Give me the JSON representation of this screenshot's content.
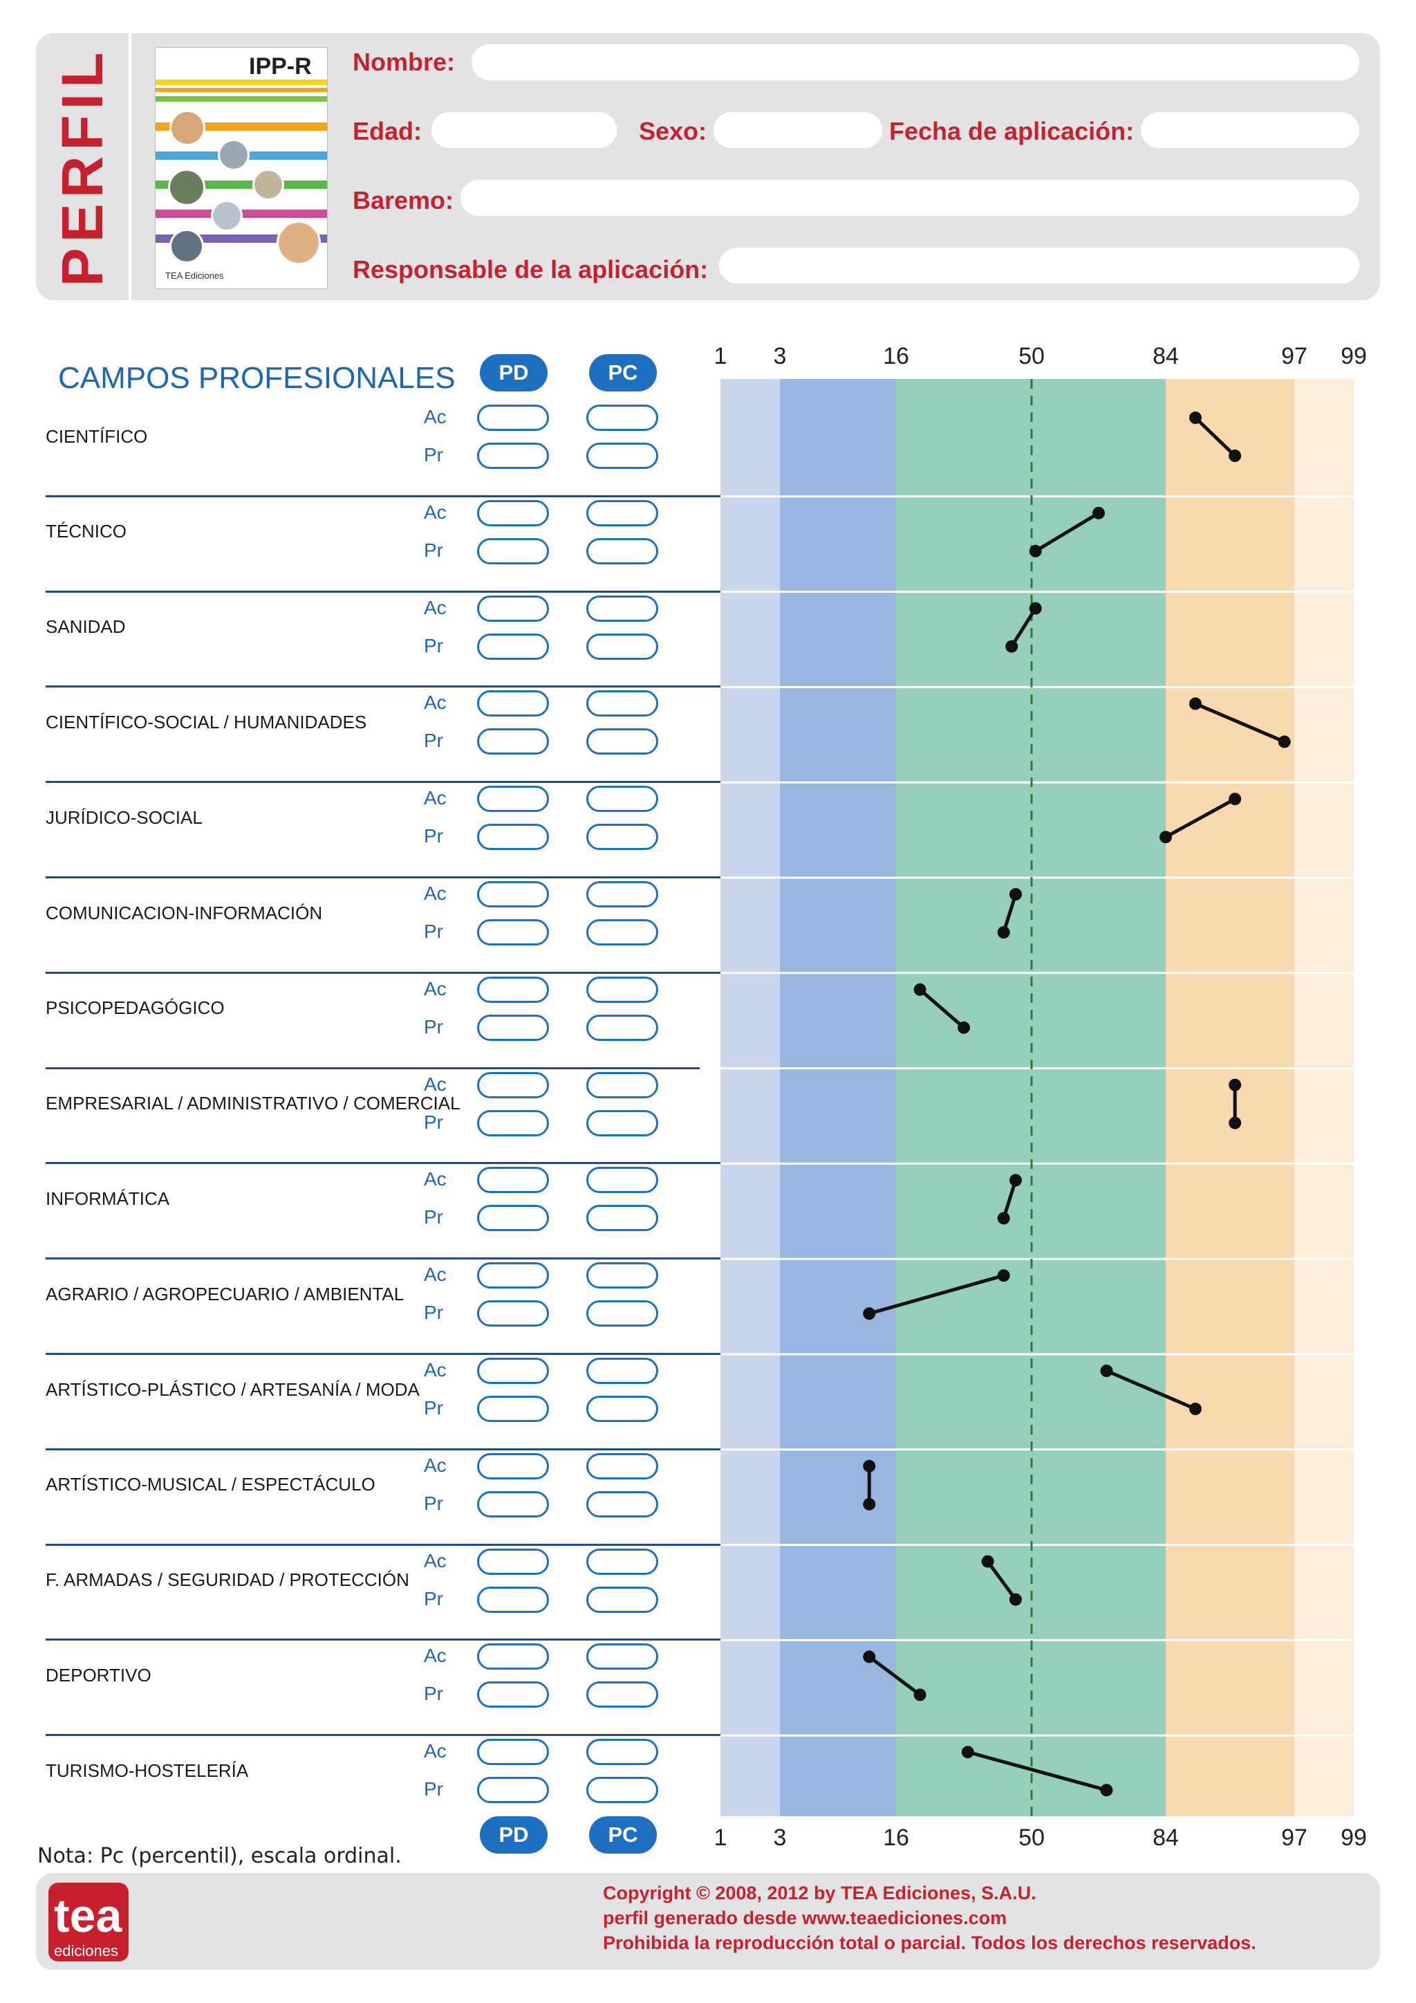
{
  "header": {
    "title": "PERFIL",
    "cover": {
      "title": "IPP-R",
      "publisher": "TEA Ediciones"
    },
    "labels": {
      "nombre": "Nombre:",
      "edad": "Edad:",
      "sexo": "Sexo:",
      "fecha": "Fecha de aplicación:",
      "baremo": "Baremo:",
      "responsable": "Responsable de la aplicación:"
    }
  },
  "section_title": "CAMPOS PROFESIONALES",
  "column_pills": {
    "pd": "PD",
    "pc": "PC"
  },
  "row_labels": {
    "ac": "Ac",
    "pr": "Pr"
  },
  "scale_ticks": [
    "1",
    "3",
    "16",
    "50",
    "84",
    "97",
    "99"
  ],
  "colors": {
    "band_1_3": "#c9d6ec",
    "band_3_16": "#9ab5df",
    "band_16_84": "#97cfbd",
    "band_84_97": "#f8d9b0",
    "band_97_99": "#fdeedc",
    "median_line": "#2f7a3a",
    "accent_red": "#c8202c",
    "accent_blue": "#1d6fc2"
  },
  "chart_data": {
    "type": "line",
    "x_axis": "percentile (ordinal scale)",
    "x_ticks": [
      1,
      3,
      16,
      50,
      84,
      97,
      99
    ],
    "categories": [
      "CIENTÍFICO",
      "TÉCNICO",
      "SANIDAD",
      "CIENTÍFICO-SOCIAL / HUMANIDADES",
      "JURÍDICO-SOCIAL",
      "COMUNICACION-INFORMACIÓN",
      "PSICOPEDAGÓGICO",
      "EMPRESARIAL / ADMINISTRATIVO / COMERCIAL",
      "INFORMÁTICA",
      "AGRARIO / AGROPECUARIO / AMBIENTAL",
      "ARTÍSTICO-PLÁSTICO / ARTESANÍA / MODA",
      "ARTÍSTICO-MUSICAL / ESPECTÁCULO",
      "F. ARMADAS / SEGURIDAD / PROTECCIÓN",
      "DEPORTIVO",
      "TURISMO-HOSTELERÍA"
    ],
    "series": [
      {
        "name": "Ac",
        "values": [
          87,
          67,
          51,
          87,
          91,
          46,
          22,
          91,
          46,
          43,
          69,
          13,
          39,
          13,
          34
        ]
      },
      {
        "name": "Pr",
        "values": [
          91,
          51,
          45,
          96,
          84,
          43,
          33,
          91,
          43,
          13,
          87,
          13,
          46,
          22,
          69
        ]
      }
    ],
    "median_line": 50
  },
  "footnote": "Nota: Pc (percentil), escala ordinal.",
  "footer": {
    "logo_text": "tea",
    "logo_sub": "ediciones",
    "line1": "Copyright © 2008, 2012 by TEA Ediciones, S.A.U.",
    "line2": "perfil generado desde www.teaediciones.com",
    "line3": "Prohibida la reproducción total o parcial. Todos los derechos reservados."
  }
}
